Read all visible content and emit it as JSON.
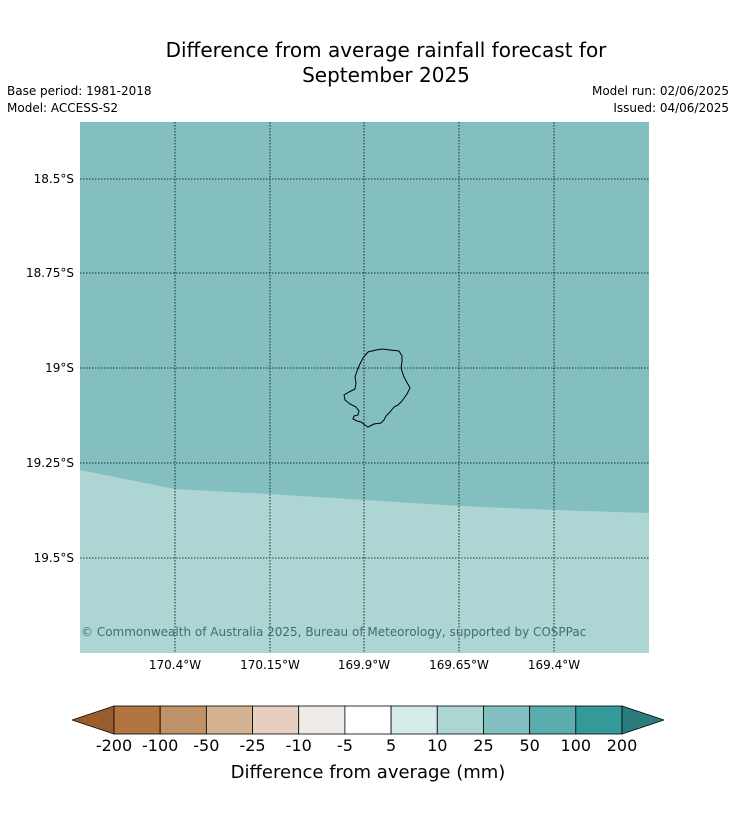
{
  "title_line1": "Difference from average rainfall forecast for",
  "title_line2": "September 2025",
  "base_period": "Base period: 1981-2018",
  "model": "Model: ACCESS-S2",
  "model_run": "Model run: 02/06/2025",
  "issued": "Issued: 04/06/2025",
  "latitudes": [
    "18.5°S",
    "18.75°S",
    "19°S",
    "19.25°S",
    "19.5°S"
  ],
  "longitudes": [
    "170.4°W",
    "170.15°W",
    "169.9°W",
    "169.65°W",
    "169.4°W"
  ],
  "copyright": "© Commonwealth of Australia 2025, Bureau of Meteorology, supported by COSPPac",
  "colorbar": {
    "ticks": [
      "-200",
      "-100",
      "-50",
      "-25",
      "-10",
      "-5",
      "5",
      "10",
      "25",
      "50",
      "100",
      "200"
    ],
    "colors": [
      "#9a5c2a",
      "#b07540",
      "#c09268",
      "#d4b293",
      "#e6cfbf",
      "#efebe8",
      "#ffffff",
      "#d6ebe9",
      "#acd5d4",
      "#84bfbf",
      "#5aadad",
      "#359999",
      "#2a7c7a"
    ],
    "label": "Difference from average (mm)"
  },
  "map_colors": {
    "band_25_50": "#84bfbf",
    "band_10_25": "#acd5d4"
  }
}
